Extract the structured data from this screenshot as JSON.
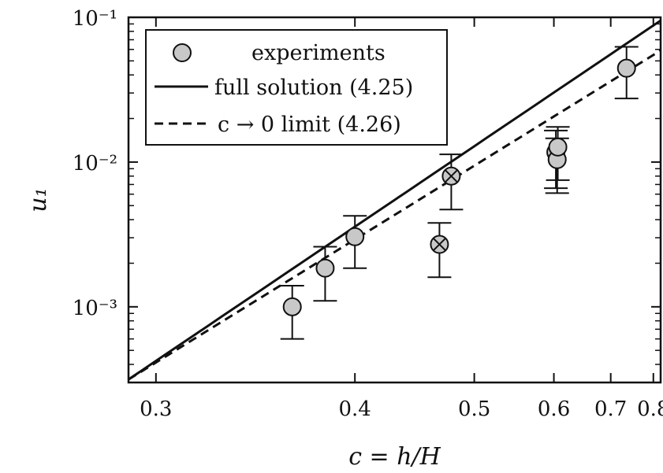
{
  "chart_data": {
    "type": "scatter",
    "xlabel": "c = h/H",
    "ylabel": "u₁",
    "x_scale": "reciprocal",
    "y_scale": "log",
    "xlim": [
      0.29,
      0.82
    ],
    "ylim": [
      0.0003,
      0.1
    ],
    "x_ticks": [
      {
        "value": 0.3,
        "label": "0.3"
      },
      {
        "value": 0.4,
        "label": "0.4"
      },
      {
        "value": 0.5,
        "label": "0.5"
      },
      {
        "value": 0.6,
        "label": "0.6"
      },
      {
        "value": 0.7,
        "label": "0.7"
      },
      {
        "value": 0.8,
        "label": "0.8"
      }
    ],
    "y_ticks": [
      {
        "value": 0.001,
        "label": "10⁻³"
      },
      {
        "value": 0.01,
        "label": "10⁻²"
      },
      {
        "value": 0.1,
        "label": "10⁻¹"
      }
    ],
    "legend": {
      "position": "top-left",
      "entries": [
        {
          "label": "experiments",
          "marker": "circle"
        },
        {
          "label": "full solution (4.25)",
          "line": "solid"
        },
        {
          "label": "c → 0 limit (4.26)",
          "line": "dashed"
        }
      ]
    },
    "series": [
      {
        "name": "experiments",
        "type": "scatter",
        "points": [
          {
            "x": 0.362,
            "y": 0.001,
            "err_low": 0.0006,
            "err_high": 0.0014,
            "crossed": false
          },
          {
            "x": 0.381,
            "y": 0.00185,
            "err_low": 0.0011,
            "err_high": 0.0026,
            "crossed": false
          },
          {
            "x": 0.4,
            "y": 0.00305,
            "err_low": 0.00185,
            "err_high": 0.00425,
            "crossed": false
          },
          {
            "x": 0.466,
            "y": 0.0027,
            "err_low": 0.0016,
            "err_high": 0.0038,
            "crossed": true
          },
          {
            "x": 0.477,
            "y": 0.008,
            "err_low": 0.0047,
            "err_high": 0.0113,
            "crossed": true
          },
          {
            "x": 0.603,
            "y": 0.0117,
            "err_low": 0.0066,
            "err_high": 0.0165,
            "crossed": false
          },
          {
            "x": 0.605,
            "y": 0.0104,
            "err_low": 0.0061,
            "err_high": 0.0146,
            "crossed": false
          },
          {
            "x": 0.606,
            "y": 0.0127,
            "err_low": 0.0075,
            "err_high": 0.0175,
            "crossed": false
          },
          {
            "x": 0.734,
            "y": 0.0445,
            "err_low": 0.0275,
            "err_high": 0.0625,
            "crossed": false
          }
        ]
      },
      {
        "name": "full solution (4.25)",
        "type": "line",
        "style": "solid",
        "x": [
          0.29,
          0.82
        ],
        "y": [
          0.000315,
          0.095
        ]
      },
      {
        "name": "c → 0 limit (4.26)",
        "type": "line",
        "style": "dashed",
        "x": [
          0.29,
          0.82
        ],
        "y": [
          0.000315,
          0.059
        ]
      }
    ]
  },
  "colors": {
    "marker_fill": "#c8c8c8",
    "ink": "#111111"
  }
}
